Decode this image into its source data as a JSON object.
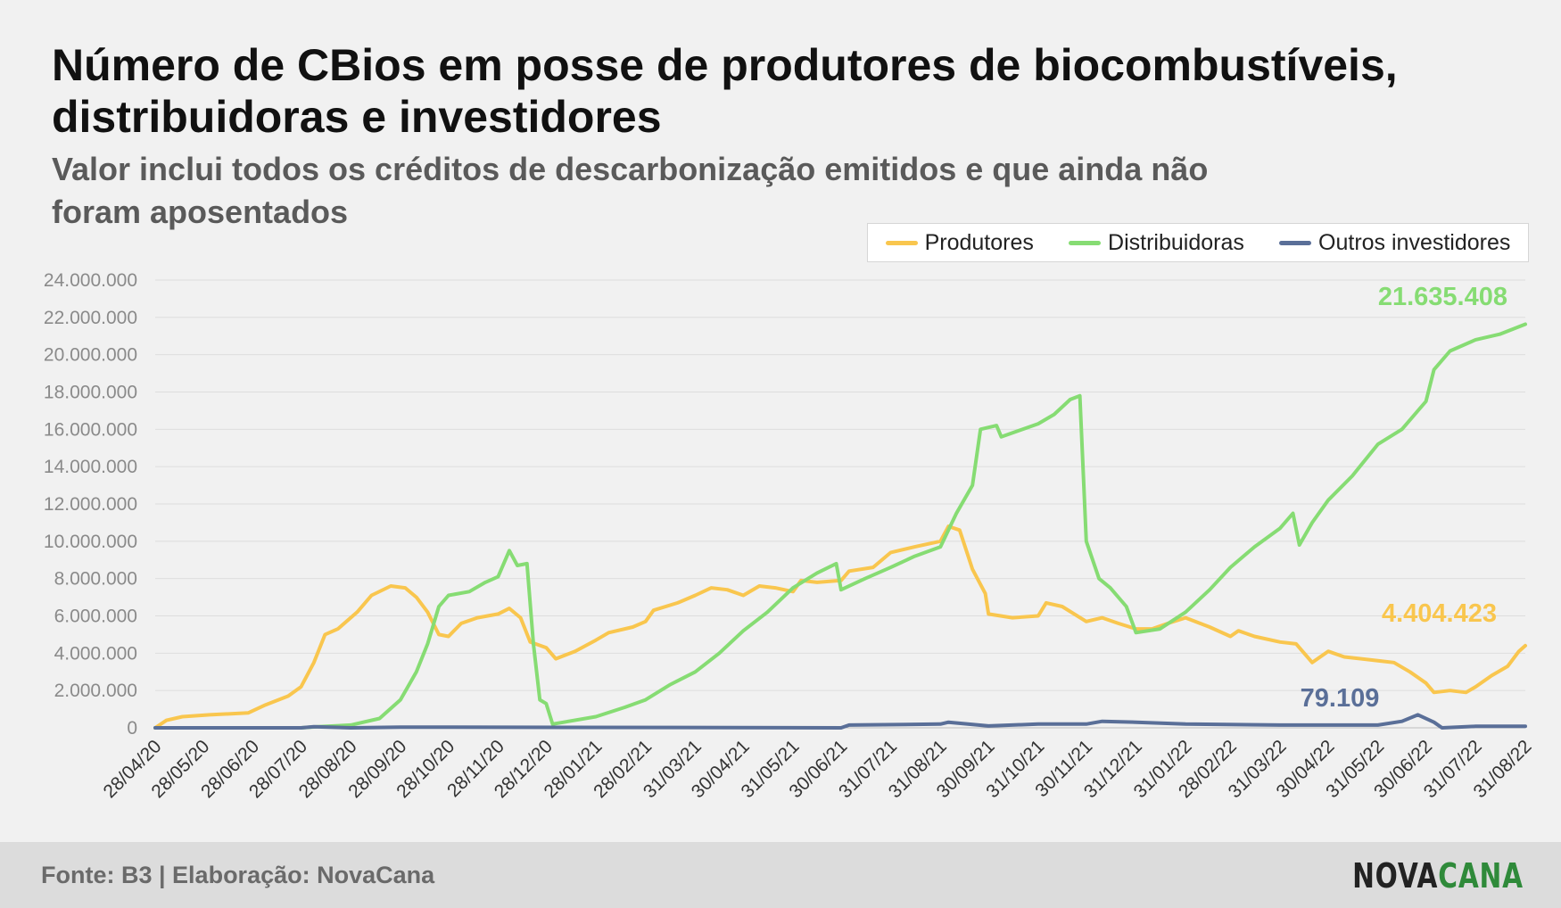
{
  "title": "Número de CBios em posse de produtores de biocombustíveis, distribuidoras e investidores",
  "subtitle": "Valor inclui todos os créditos de descarbonização emitidos e que ainda não foram aposentados",
  "footer": {
    "source": "Fonte: B3 | Elaboração: NovaCana",
    "logo_nova": "NOVA",
    "logo_cana": "CANA"
  },
  "colors": {
    "produtores": "#f9c64e",
    "distribuidoras": "#86dc73",
    "outros": "#5a6f98"
  },
  "chart_data": {
    "type": "line",
    "title": "Número de CBios em posse de produtores de biocombustíveis, distribuidoras e investidores",
    "ylim": [
      0,
      24000000
    ],
    "yticks": [
      0,
      2000000,
      4000000,
      6000000,
      8000000,
      10000000,
      12000000,
      14000000,
      16000000,
      18000000,
      20000000,
      22000000,
      24000000
    ],
    "ytick_labels": [
      "0",
      "2.000.000",
      "4.000.000",
      "6.000.000",
      "8.000.000",
      "10.000.000",
      "12.000.000",
      "14.000.000",
      "16.000.000",
      "18.000.000",
      "20.000.000",
      "22.000.000",
      "24.000.000"
    ],
    "grid": true,
    "legend": "top-right",
    "xlim": [
      "2020-04-28",
      "2022-08-31"
    ],
    "x_ticks": [
      "2020-04-28",
      "2020-05-28",
      "2020-06-28",
      "2020-07-28",
      "2020-08-28",
      "2020-09-28",
      "2020-10-28",
      "2020-11-28",
      "2020-12-28",
      "2021-01-28",
      "2021-02-28",
      "2021-03-31",
      "2021-04-30",
      "2021-05-31",
      "2021-06-30",
      "2021-07-31",
      "2021-08-31",
      "2021-09-30",
      "2021-10-31",
      "2021-11-30",
      "2021-12-31",
      "2022-01-31",
      "2022-02-28",
      "2022-03-31",
      "2022-04-30",
      "2022-05-31",
      "2022-06-30",
      "2022-07-31",
      "2022-08-31"
    ],
    "x_tick_labels": [
      "28/04/20",
      "28/05/20",
      "28/06/20",
      "28/07/20",
      "28/08/20",
      "28/09/20",
      "28/10/20",
      "28/11/20",
      "28/12/20",
      "28/01/21",
      "28/02/21",
      "31/03/21",
      "30/04/21",
      "31/05/21",
      "30/06/21",
      "31/07/21",
      "31/08/21",
      "30/09/21",
      "31/10/21",
      "30/11/21",
      "31/12/21",
      "31/01/22",
      "28/02/22",
      "31/03/22",
      "30/04/22",
      "31/05/22",
      "30/06/22",
      "31/07/22",
      "31/08/22"
    ],
    "series": [
      {
        "name": "Produtores",
        "end_label": "4.404.423",
        "points": [
          [
            "2020-04-28",
            0
          ],
          [
            "2020-05-05",
            400000
          ],
          [
            "2020-05-15",
            600000
          ],
          [
            "2020-06-01",
            700000
          ],
          [
            "2020-06-25",
            800000
          ],
          [
            "2020-07-05",
            1200000
          ],
          [
            "2020-07-20",
            1700000
          ],
          [
            "2020-07-28",
            2200000
          ],
          [
            "2020-08-05",
            3500000
          ],
          [
            "2020-08-12",
            5000000
          ],
          [
            "2020-08-20",
            5300000
          ],
          [
            "2020-09-01",
            6200000
          ],
          [
            "2020-09-10",
            7100000
          ],
          [
            "2020-09-22",
            7600000
          ],
          [
            "2020-10-01",
            7500000
          ],
          [
            "2020-10-08",
            7000000
          ],
          [
            "2020-10-15",
            6200000
          ],
          [
            "2020-10-22",
            5000000
          ],
          [
            "2020-10-28",
            4900000
          ],
          [
            "2020-11-05",
            5600000
          ],
          [
            "2020-11-15",
            5900000
          ],
          [
            "2020-11-28",
            6100000
          ],
          [
            "2020-12-05",
            6400000
          ],
          [
            "2020-12-12",
            5900000
          ],
          [
            "2020-12-18",
            4600000
          ],
          [
            "2020-12-28",
            4300000
          ],
          [
            "2021-01-03",
            3700000
          ],
          [
            "2021-01-15",
            4100000
          ],
          [
            "2021-01-28",
            4700000
          ],
          [
            "2021-02-05",
            5100000
          ],
          [
            "2021-02-20",
            5400000
          ],
          [
            "2021-02-28",
            5700000
          ],
          [
            "2021-03-05",
            6300000
          ],
          [
            "2021-03-20",
            6700000
          ],
          [
            "2021-03-31",
            7100000
          ],
          [
            "2021-04-10",
            7500000
          ],
          [
            "2021-04-20",
            7400000
          ],
          [
            "2021-04-30",
            7100000
          ],
          [
            "2021-05-10",
            7600000
          ],
          [
            "2021-05-20",
            7500000
          ],
          [
            "2021-05-31",
            7300000
          ],
          [
            "2021-06-05",
            7900000
          ],
          [
            "2021-06-15",
            7800000
          ],
          [
            "2021-06-30",
            7900000
          ],
          [
            "2021-07-05",
            8400000
          ],
          [
            "2021-07-20",
            8600000
          ],
          [
            "2021-07-31",
            9400000
          ],
          [
            "2021-08-15",
            9700000
          ],
          [
            "2021-08-31",
            10000000
          ],
          [
            "2021-09-05",
            10800000
          ],
          [
            "2021-09-12",
            10600000
          ],
          [
            "2021-09-20",
            8500000
          ],
          [
            "2021-09-28",
            7200000
          ],
          [
            "2021-09-30",
            6100000
          ],
          [
            "2021-10-15",
            5900000
          ],
          [
            "2021-10-31",
            6000000
          ],
          [
            "2021-11-05",
            6700000
          ],
          [
            "2021-11-15",
            6500000
          ],
          [
            "2021-11-30",
            5700000
          ],
          [
            "2021-12-10",
            5900000
          ],
          [
            "2021-12-20",
            5600000
          ],
          [
            "2021-12-31",
            5300000
          ],
          [
            "2022-01-10",
            5300000
          ],
          [
            "2022-01-20",
            5600000
          ],
          [
            "2022-01-31",
            5900000
          ],
          [
            "2022-02-15",
            5400000
          ],
          [
            "2022-02-28",
            4900000
          ],
          [
            "2022-03-05",
            5200000
          ],
          [
            "2022-03-15",
            4900000
          ],
          [
            "2022-03-31",
            4600000
          ],
          [
            "2022-04-10",
            4500000
          ],
          [
            "2022-04-20",
            3500000
          ],
          [
            "2022-04-30",
            4100000
          ],
          [
            "2022-05-10",
            3800000
          ],
          [
            "2022-05-31",
            3600000
          ],
          [
            "2022-06-10",
            3500000
          ],
          [
            "2022-06-20",
            3000000
          ],
          [
            "2022-06-30",
            2400000
          ],
          [
            "2022-07-05",
            1900000
          ],
          [
            "2022-07-15",
            2000000
          ],
          [
            "2022-07-25",
            1900000
          ],
          [
            "2022-07-31",
            2200000
          ],
          [
            "2022-08-10",
            2800000
          ],
          [
            "2022-08-20",
            3300000
          ],
          [
            "2022-08-27",
            4100000
          ],
          [
            "2022-08-31",
            4404423
          ]
        ]
      },
      {
        "name": "Distribuidoras",
        "end_label": "21.635.408",
        "points": [
          [
            "2020-04-28",
            0
          ],
          [
            "2020-07-28",
            0
          ],
          [
            "2020-08-05",
            50000
          ],
          [
            "2020-08-28",
            150000
          ],
          [
            "2020-09-15",
            500000
          ],
          [
            "2020-09-28",
            1500000
          ],
          [
            "2020-10-08",
            3000000
          ],
          [
            "2020-10-15",
            4500000
          ],
          [
            "2020-10-22",
            6500000
          ],
          [
            "2020-10-28",
            7100000
          ],
          [
            "2020-11-10",
            7300000
          ],
          [
            "2020-11-20",
            7800000
          ],
          [
            "2020-11-28",
            8100000
          ],
          [
            "2020-12-05",
            9500000
          ],
          [
            "2020-12-10",
            8700000
          ],
          [
            "2020-12-16",
            8800000
          ],
          [
            "2020-12-20",
            4500000
          ],
          [
            "2020-12-24",
            1500000
          ],
          [
            "2020-12-28",
            1300000
          ],
          [
            "2021-01-01",
            200000
          ],
          [
            "2021-01-28",
            600000
          ],
          [
            "2021-02-15",
            1100000
          ],
          [
            "2021-02-28",
            1500000
          ],
          [
            "2021-03-15",
            2300000
          ],
          [
            "2021-03-31",
            3000000
          ],
          [
            "2021-04-15",
            4000000
          ],
          [
            "2021-04-30",
            5200000
          ],
          [
            "2021-05-15",
            6200000
          ],
          [
            "2021-05-31",
            7500000
          ],
          [
            "2021-06-15",
            8300000
          ],
          [
            "2021-06-27",
            8800000
          ],
          [
            "2021-06-30",
            7400000
          ],
          [
            "2021-07-15",
            8000000
          ],
          [
            "2021-07-31",
            8600000
          ],
          [
            "2021-08-15",
            9200000
          ],
          [
            "2021-08-31",
            9700000
          ],
          [
            "2021-09-10",
            11500000
          ],
          [
            "2021-09-20",
            13000000
          ],
          [
            "2021-09-25",
            16000000
          ],
          [
            "2021-10-05",
            16200000
          ],
          [
            "2021-10-08",
            15600000
          ],
          [
            "2021-10-31",
            16300000
          ],
          [
            "2021-11-10",
            16800000
          ],
          [
            "2021-11-20",
            17600000
          ],
          [
            "2021-11-26",
            17800000
          ],
          [
            "2021-11-30",
            10000000
          ],
          [
            "2021-12-08",
            8000000
          ],
          [
            "2021-12-15",
            7500000
          ],
          [
            "2021-12-25",
            6500000
          ],
          [
            "2021-12-31",
            5100000
          ],
          [
            "2022-01-15",
            5300000
          ],
          [
            "2022-01-31",
            6200000
          ],
          [
            "2022-02-15",
            7400000
          ],
          [
            "2022-02-28",
            8600000
          ],
          [
            "2022-03-15",
            9700000
          ],
          [
            "2022-03-31",
            10700000
          ],
          [
            "2022-04-08",
            11500000
          ],
          [
            "2022-04-12",
            9800000
          ],
          [
            "2022-04-20",
            11000000
          ],
          [
            "2022-04-30",
            12200000
          ],
          [
            "2022-05-15",
            13500000
          ],
          [
            "2022-05-31",
            15200000
          ],
          [
            "2022-06-15",
            16000000
          ],
          [
            "2022-06-30",
            17500000
          ],
          [
            "2022-07-05",
            19200000
          ],
          [
            "2022-07-15",
            20200000
          ],
          [
            "2022-07-31",
            20800000
          ],
          [
            "2022-08-15",
            21100000
          ],
          [
            "2022-08-31",
            21635408
          ]
        ]
      },
      {
        "name": "Outros investidores",
        "end_label": "79.109",
        "points": [
          [
            "2020-04-28",
            0
          ],
          [
            "2020-07-28",
            0
          ],
          [
            "2020-08-05",
            60000
          ],
          [
            "2020-08-28",
            0
          ],
          [
            "2020-09-28",
            40000
          ],
          [
            "2020-10-28",
            40000
          ],
          [
            "2021-06-30",
            0
          ],
          [
            "2021-07-05",
            150000
          ],
          [
            "2021-08-31",
            200000
          ],
          [
            "2021-09-05",
            300000
          ],
          [
            "2021-09-30",
            100000
          ],
          [
            "2021-10-31",
            200000
          ],
          [
            "2021-11-30",
            200000
          ],
          [
            "2021-12-10",
            350000
          ],
          [
            "2021-12-31",
            300000
          ],
          [
            "2022-01-31",
            200000
          ],
          [
            "2022-03-31",
            150000
          ],
          [
            "2022-05-31",
            150000
          ],
          [
            "2022-06-15",
            350000
          ],
          [
            "2022-06-25",
            700000
          ],
          [
            "2022-07-05",
            300000
          ],
          [
            "2022-07-10",
            0
          ],
          [
            "2022-07-31",
            79109
          ],
          [
            "2022-08-31",
            79109
          ]
        ]
      }
    ]
  }
}
